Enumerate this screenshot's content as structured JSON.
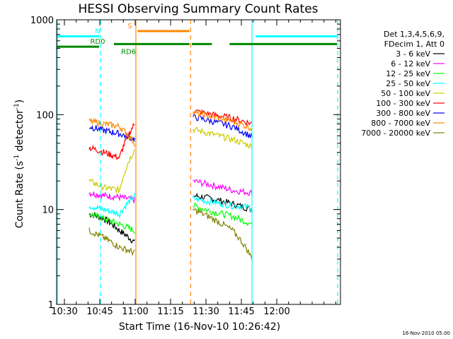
{
  "chart_data": {
    "type": "line",
    "title": "HESSI Observing Summary Count Rates",
    "xlabel": "Start Time (16-Nov-10 10:26:42)",
    "ylabel": "Count Rate (s",
    "ylabel_sup": "-1",
    "ylabel_tail": " detector",
    "ylabel_tail_sup": "-1",
    "ylabel_end": ")",
    "footer": "16-Nov-2010 05:00",
    "xlim_min": [
      626.7,
      747
    ],
    "ylim": [
      1,
      1000
    ],
    "yscale": "log",
    "x_ticks": [
      {
        "label": "10:30",
        "min": 630
      },
      {
        "label": "10:45",
        "min": 645
      },
      {
        "label": "11:00",
        "min": 660
      },
      {
        "label": "11:15",
        "min": 675
      },
      {
        "label": "11:30",
        "min": 690
      },
      {
        "label": "11:45",
        "min": 705
      },
      {
        "label": "12:00",
        "min": 720
      }
    ],
    "y_ticks": [
      {
        "label": "1",
        "v": 1
      },
      {
        "label": "10",
        "v": 10
      },
      {
        "label": "100",
        "v": 100
      },
      {
        "label": "1000",
        "v": 1000
      }
    ],
    "legend": {
      "header1": "Det 1,3,4,5,6,9,",
      "header2": "FDecim 1, Att 0",
      "placement": "right"
    },
    "segments": [
      [
        640.5,
        659.8
      ],
      [
        684.5,
        709.6
      ]
    ],
    "series": [
      {
        "name": "3 - 6 keV",
        "color": "#000000",
        "s1": [
          9,
          8,
          6,
          4.5
        ],
        "s2": [
          14,
          13,
          11.5,
          10
        ]
      },
      {
        "name": "6 - 12 keV",
        "color": "#ff00ff",
        "s1": [
          15,
          14,
          13.5,
          12.5
        ],
        "s2": [
          20,
          18,
          16,
          15
        ]
      },
      {
        "name": "12 - 25 keV",
        "color": "#00ff00",
        "s1": [
          9,
          8,
          7,
          6
        ],
        "s2": [
          11,
          9.5,
          8.5,
          7
        ]
      },
      {
        "name": "25 - 50 keV",
        "color": "#00ffff",
        "s1": [
          11,
          10,
          9,
          14
        ],
        "s2": [
          13,
          12,
          11,
          10.5
        ]
      },
      {
        "name": "50 - 100 keV",
        "color": "#cccc00",
        "s1": [
          20,
          17,
          16,
          43
        ],
        "s2": [
          70,
          62,
          55,
          46
        ]
      },
      {
        "name": "100 - 300 keV",
        "color": "#ff0000",
        "s1": [
          45,
          40,
          35,
          80
        ],
        "s2": [
          110,
          100,
          92,
          80
        ]
      },
      {
        "name": "300 - 800 keV",
        "color": "#0000ff",
        "s1": [
          75,
          68,
          63,
          55
        ],
        "s2": [
          95,
          85,
          75,
          58
        ]
      },
      {
        "name": "800 - 7000 keV",
        "color": "#ff8800",
        "s1": [
          85,
          80,
          75,
          50
        ],
        "s2": [
          105,
          95,
          85,
          72
        ]
      },
      {
        "name": "7000 - 20000 keV",
        "color": "#808000",
        "s1": [
          6,
          5,
          4,
          3.5
        ],
        "s2": [
          10,
          8,
          6,
          3
        ]
      }
    ],
    "flags": [
      {
        "label": "N",
        "color": "#00ffff",
        "y": 670,
        "spans": [
          [
            626.7,
            644.7
          ],
          [
            711,
            745.5
          ]
        ]
      },
      {
        "label": "RD0",
        "color": "#008800",
        "y": 520,
        "spans": [
          [
            626.7,
            644.7
          ]
        ]
      },
      {
        "label": "S",
        "color": "#ff8800",
        "y": 760,
        "spans": [
          [
            661,
            683
          ]
        ]
      },
      {
        "label": "RD6",
        "color": "#008800",
        "y": 555,
        "spans": [
          [
            651,
            683
          ],
          [
            684,
            692.5
          ],
          [
            700,
            745.5
          ]
        ]
      }
    ],
    "vlines": [
      {
        "min": 627,
        "color": "#00ffff",
        "dash": false
      },
      {
        "min": 645.3,
        "color": "#00ffff",
        "dash": true
      },
      {
        "min": 660.3,
        "color": "#ff8800",
        "dash": false
      },
      {
        "min": 683.5,
        "color": "#ff8800",
        "dash": true
      },
      {
        "min": 709.5,
        "color": "#00ffff",
        "dash": false
      },
      {
        "min": 745.8,
        "color": "#00ffff",
        "dash": true
      }
    ]
  }
}
